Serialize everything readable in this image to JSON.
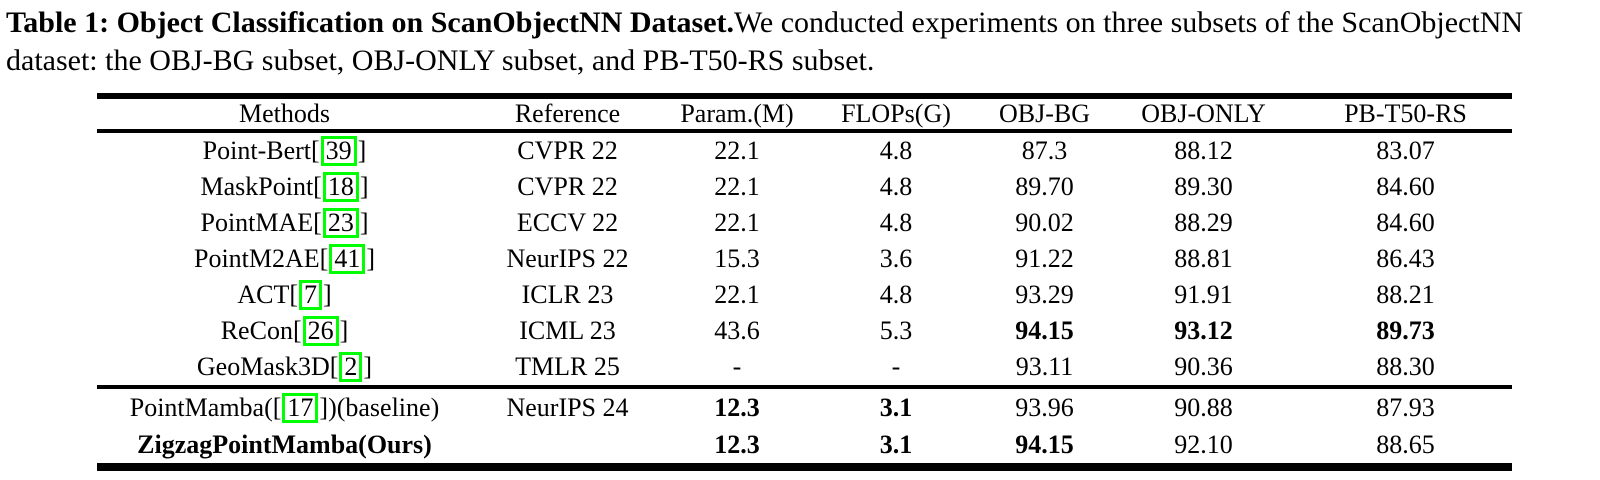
{
  "caption": {
    "title_bold": "Table 1: Object Classification on ScanObjectNN Dataset.",
    "body": "We conducted experiments on three subsets of the ScanObjectNN dataset: the OBJ-BG subset, OBJ-ONLY subset, and PB-T50-RS subset."
  },
  "table": {
    "columns": [
      "Methods",
      "Reference",
      "Param.(M)",
      "FLOPs(G)",
      "OBJ-BG",
      "OBJ-ONLY",
      "PB-T50-RS"
    ],
    "rows": [
      {
        "group": "main",
        "method_pre": "Point-Bert[",
        "cite": "39",
        "method_post": "]",
        "method_bold": false,
        "method_align": "center",
        "reference": "CVPR 22",
        "param": "22.1",
        "flops": "4.8",
        "obj_bg": "87.3",
        "obj_only": "88.12",
        "pb_t50_rs": "83.07",
        "bold_fields": []
      },
      {
        "group": "main",
        "method_pre": "MaskPoint[",
        "cite": "18",
        "method_post": "]",
        "method_bold": false,
        "method_align": "center",
        "reference": "CVPR 22",
        "param": "22.1",
        "flops": "4.8",
        "obj_bg": "89.70",
        "obj_only": "89.30",
        "pb_t50_rs": "84.60",
        "bold_fields": []
      },
      {
        "group": "main",
        "method_pre": "PointMAE[",
        "cite": "23",
        "method_post": "]",
        "method_bold": false,
        "method_align": "center",
        "reference": "ECCV 22",
        "param": "22.1",
        "flops": "4.8",
        "obj_bg": "90.02",
        "obj_only": "88.29",
        "pb_t50_rs": "84.60",
        "bold_fields": []
      },
      {
        "group": "main",
        "method_pre": "PointM2AE[",
        "cite": "41",
        "method_post": "]",
        "method_bold": false,
        "method_align": "center",
        "reference": "NeurIPS 22",
        "param": "15.3",
        "flops": "3.6",
        "obj_bg": "91.22",
        "obj_only": "88.81",
        "pb_t50_rs": "86.43",
        "bold_fields": []
      },
      {
        "group": "main",
        "method_pre": "ACT[",
        "cite": "7",
        "method_post": "]",
        "method_bold": false,
        "method_align": "center",
        "reference": "ICLR 23",
        "param": "22.1",
        "flops": "4.8",
        "obj_bg": "93.29",
        "obj_only": "91.91",
        "pb_t50_rs": "88.21",
        "bold_fields": []
      },
      {
        "group": "main",
        "method_pre": "ReCon[",
        "cite": "26",
        "method_post": "]",
        "method_bold": false,
        "method_align": "center",
        "reference": "ICML 23",
        "param": "43.6",
        "flops": "5.3",
        "obj_bg": "94.15",
        "obj_only": "93.12",
        "pb_t50_rs": "89.73",
        "bold_fields": [
          "obj_bg",
          "obj_only",
          "pb_t50_rs"
        ]
      },
      {
        "group": "main",
        "method_pre": "GeoMask3D[",
        "cite": "2",
        "method_post": "]",
        "method_bold": false,
        "method_align": "center",
        "reference": "TMLR 25",
        "param": "-",
        "flops": "-",
        "obj_bg": "93.11",
        "obj_only": "90.36",
        "pb_t50_rs": "88.30",
        "bold_fields": []
      },
      {
        "group": "bottom",
        "method_pre": "PointMamba([",
        "cite": "17",
        "method_post": "])(baseline)",
        "method_bold": false,
        "method_align": "left",
        "reference": "NeurIPS 24",
        "param": "12.3",
        "flops": "3.1",
        "obj_bg": "93.96",
        "obj_only": "90.88",
        "pb_t50_rs": "87.93",
        "bold_fields": [
          "param",
          "flops"
        ]
      },
      {
        "group": "bottom",
        "method_pre": "ZigzagPointMamba(Ours)",
        "cite": null,
        "method_post": "",
        "method_bold": true,
        "method_align": "left",
        "reference": "",
        "param": "12.3",
        "flops": "3.1",
        "obj_bg": "94.15",
        "obj_only": "92.10",
        "pb_t50_rs": "88.65",
        "bold_fields": [
          "param",
          "flops",
          "obj_bg"
        ]
      }
    ]
  },
  "colors": {
    "citation_box": "#00FF00",
    "rule": "#000000",
    "background": "#FFFFFF",
    "text": "#000000"
  }
}
